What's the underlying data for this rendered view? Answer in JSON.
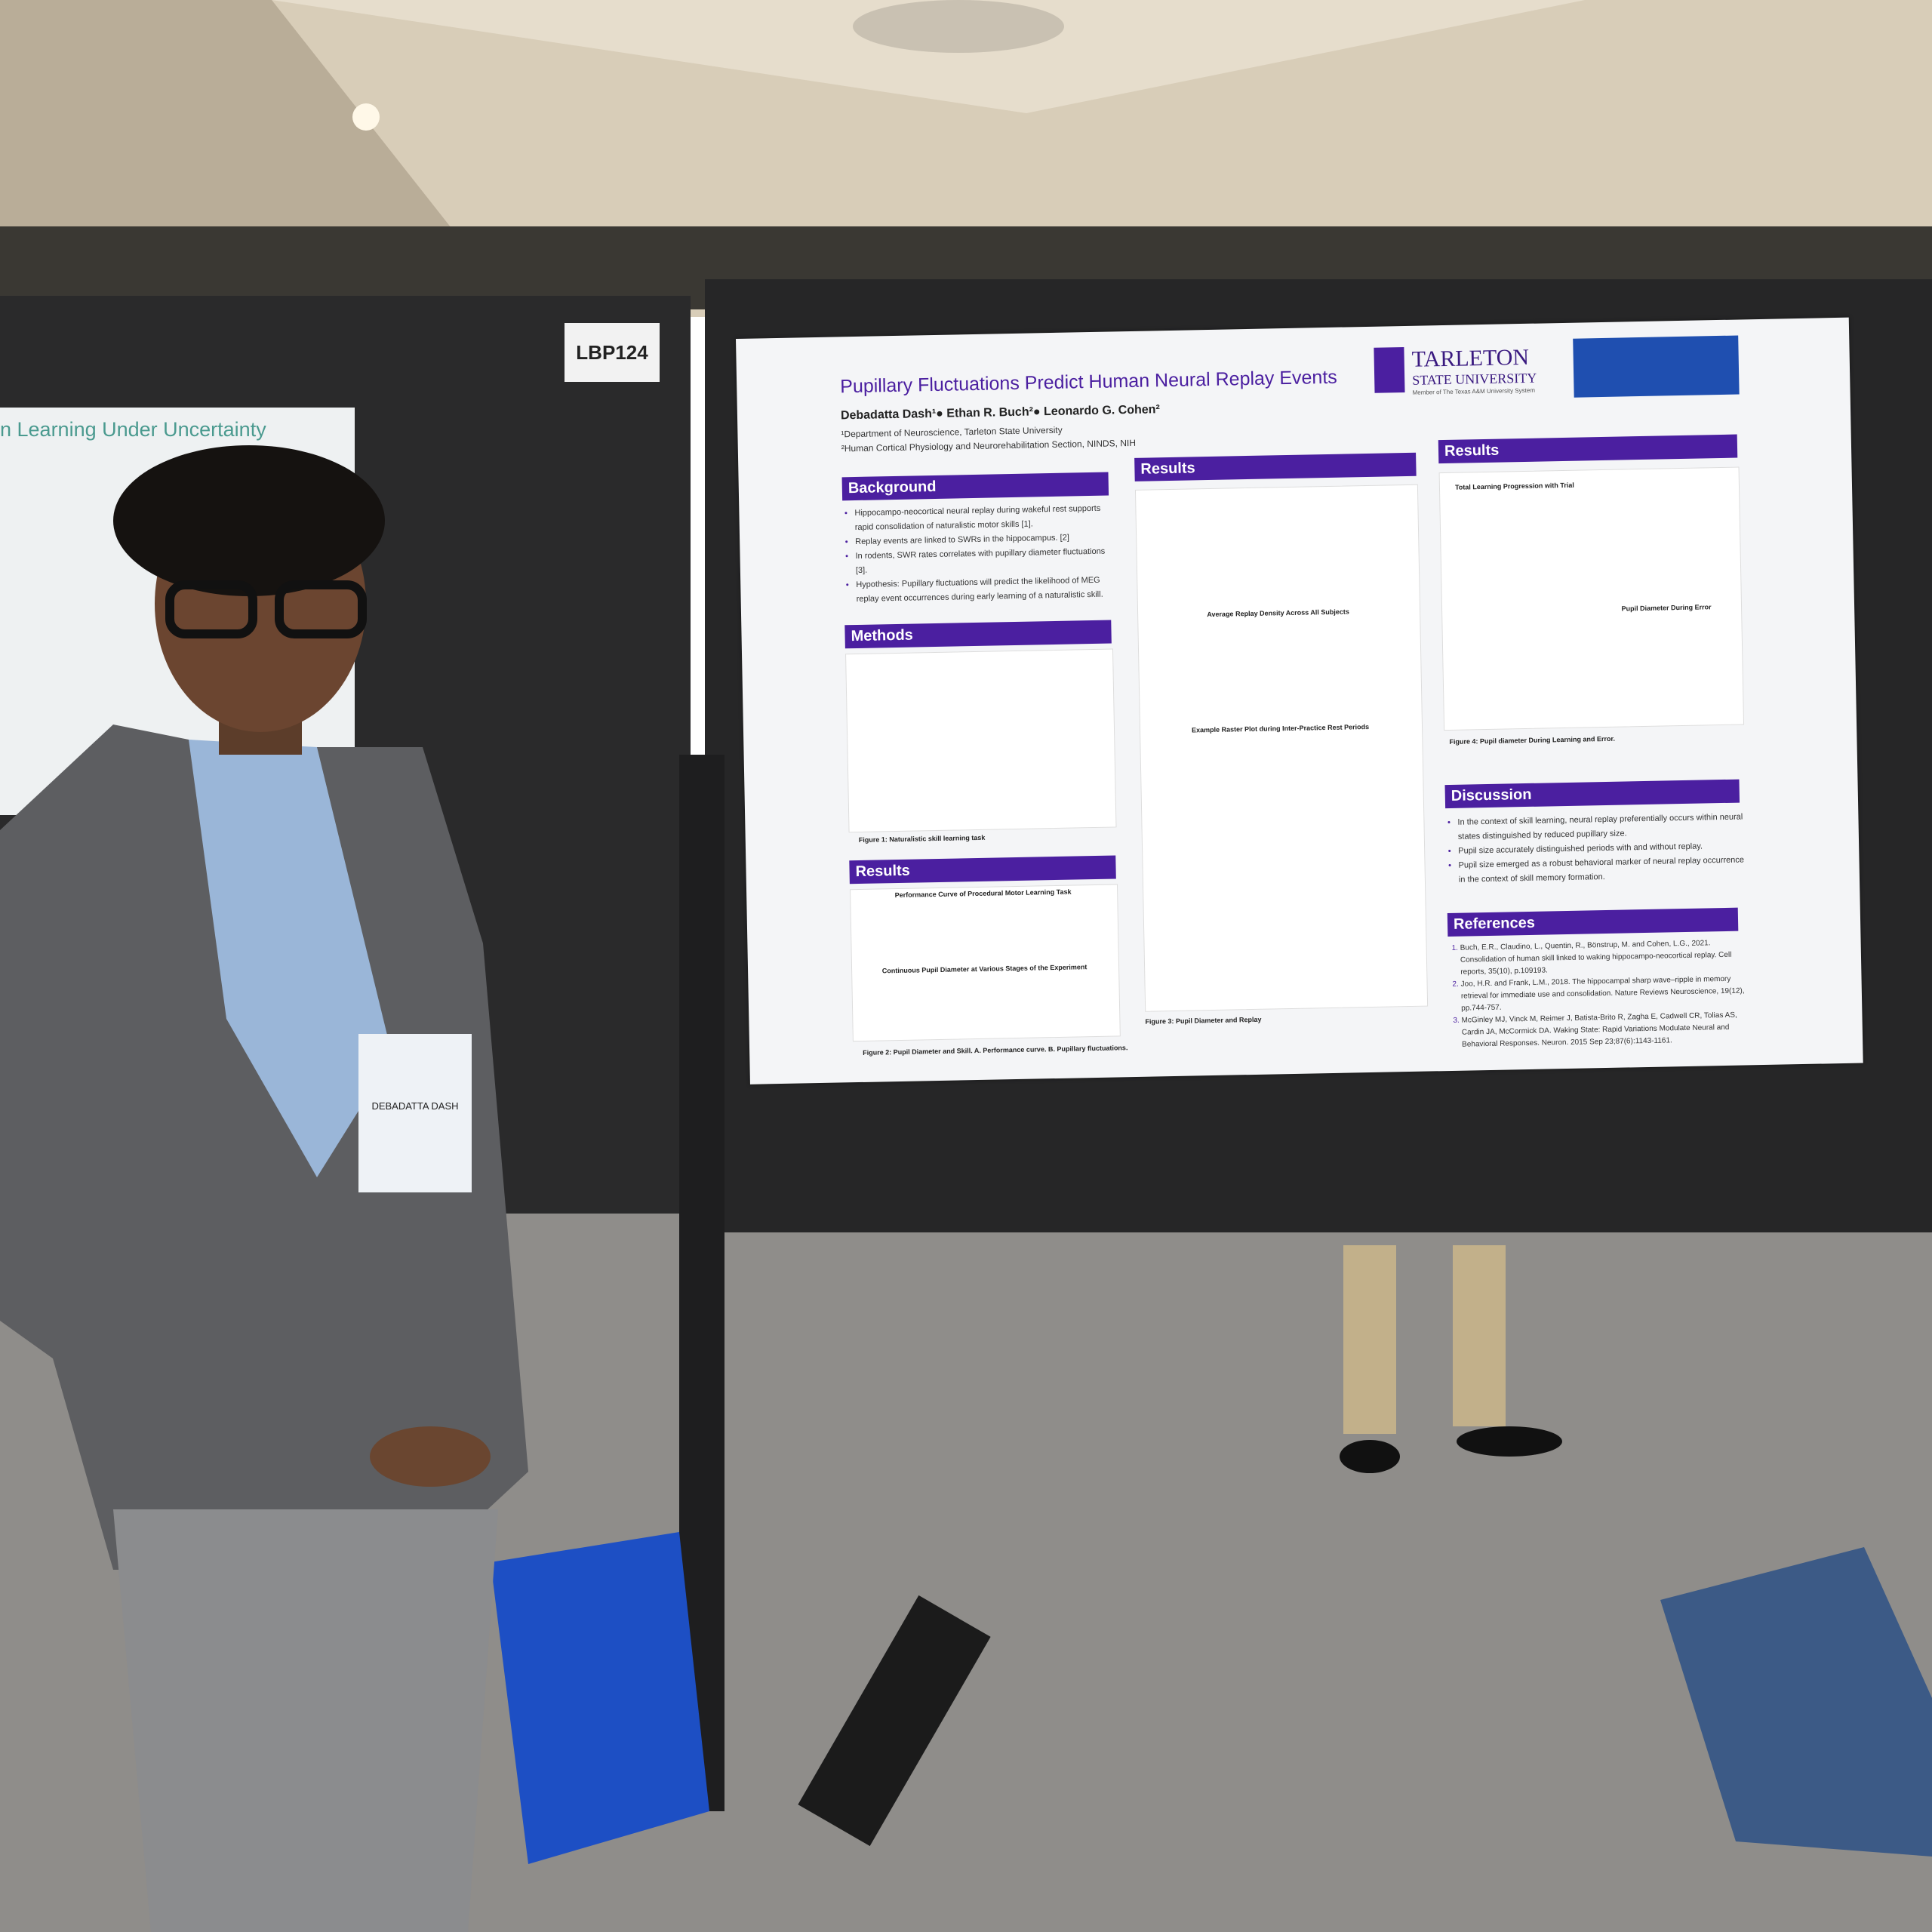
{
  "board_label": "LBP124",
  "neighbor_poster": {
    "title": "n Learning Under Uncertainty"
  },
  "poster": {
    "title": "Pupillary Fluctuations Predict Human Neural Replay Events",
    "authors": "Debadatta Dash¹● Ethan R. Buch²● Leonardo G. Cohen²",
    "affiliations": [
      "¹Department of Neuroscience, Tarleton State University",
      "²Human Cortical Physiology and Neurorehabilitation Section, NINDS, NIH"
    ],
    "logo": {
      "name": "TARLETON",
      "sub": "STATE UNIVERSITY",
      "tagline": "Member of The Texas A&M University System"
    },
    "background": {
      "heading": "Background",
      "items": [
        "Hippocampo-neocortical neural replay during wakeful rest supports rapid consolidation of naturalistic motor skills [1].",
        "Replay events are linked to SWRs in the hippocampus. [2]",
        "In rodents, SWR rates correlates with pupillary diameter fluctuations [3].",
        "Hypothesis: Pupillary fluctuations will predict the likelihood of MEG replay event occurrences during early learning of a naturalistic skill."
      ]
    },
    "methods": {
      "heading": "Methods",
      "caption": "Figure 1: Naturalistic skill learning task"
    },
    "results_1": {
      "heading": "Results",
      "chart_titles": [
        "Performance Curve of Procedural Motor Learning Task",
        "Continuous Pupil Diameter at Various Stages of the Experiment"
      ],
      "caption": "Figure 2: Pupil Diameter and Skill. A. Performance curve. B. Pupillary fluctuations."
    },
    "results_2": {
      "heading": "Results",
      "chart_titles": [
        "Average Replay Density Across All Subjects",
        "Example Raster Plot during Inter-Practice Rest Periods"
      ],
      "caption": "Figure 3: Pupil Diameter and Replay"
    },
    "results_3": {
      "heading": "Results",
      "chart_titles": [
        "Total Learning Progression with Trial",
        "Pupil Diameter During Error"
      ],
      "caption": "Figure 4: Pupil diameter During Learning and Error."
    },
    "discussion": {
      "heading": "Discussion",
      "items": [
        "In the context of skill learning, neural replay preferentially occurs within neural states distinguished by reduced pupillary size.",
        "Pupil size accurately distinguished periods with and without replay.",
        "Pupil size emerged as a robust behavioral marker of neural replay occurrence in the context of skill memory formation."
      ]
    },
    "references": {
      "heading": "References",
      "items": [
        "Buch, E.R., Claudino, L., Quentin, R., Bönstrup, M. and Cohen, L.G., 2021. Consolidation of human skill linked to waking hippocampo-neocortical replay. Cell reports, 35(10), p.109193.",
        "Joo, H.R. and Frank, L.M., 2018. The hippocampal sharp wave–ripple in memory retrieval for immediate use and consolidation. Nature Reviews Neuroscience, 19(12), pp.744-757.",
        "McGinley MJ, Vinck M, Reimer J, Batista-Brito R, Zagha E, Cadwell CR, Tolias AS, Cardin JA, McCormick DA. Waking State: Rapid Variations Modulate Neural and Behavioral Responses. Neuron. 2015 Sep 23;87(6):1143-1161."
      ]
    }
  },
  "badge": {
    "name": "DEBADATTA DASH"
  }
}
